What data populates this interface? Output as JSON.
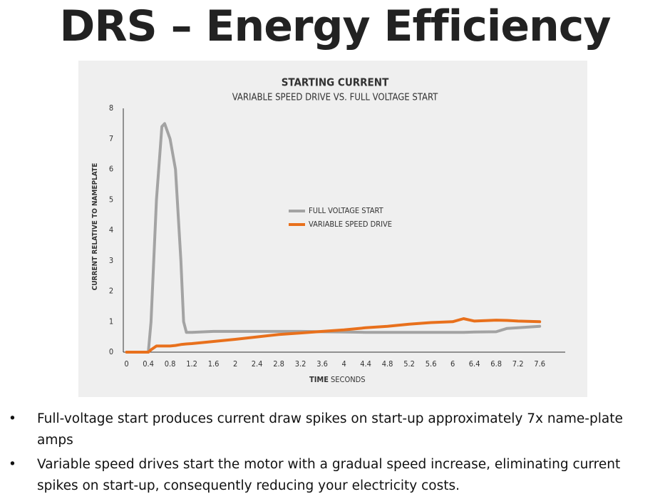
{
  "slide_title": "DRS – Energy Efficiency",
  "bullets": [
    "Full-voltage start produces current draw spikes on start-up approximately 7x  name-plate amps",
    "Variable speed drives start the motor with a gradual speed increase, eliminating current spikes on start-up, consequently reducing your electricity costs."
  ],
  "chart_data": {
    "type": "line",
    "title": "STARTING CURRENT",
    "subtitle": "VARIABLE  SPEED DRIVE VS. FULL VOLTAGE START",
    "x_label": "TIME",
    "x_label_unit": "SECONDS",
    "y_label": "CURRENT RELATIVE TO NAMEPLATE",
    "x": [
      0,
      0.4,
      0.45,
      0.55,
      0.65,
      0.7,
      0.8,
      0.9,
      1.0,
      1.05,
      1.1,
      1.2,
      1.6,
      2,
      2.4,
      2.8,
      3.2,
      3.6,
      4,
      4.4,
      4.8,
      5.2,
      5.6,
      6,
      6.2,
      6.4,
      6.8,
      7,
      7.2,
      7.6
    ],
    "series": [
      {
        "name": "FULL VOLTAGE START",
        "color": "#a3a3a3",
        "values": [
          0,
          0,
          1,
          5,
          7.4,
          7.5,
          7.0,
          6.0,
          3,
          1.0,
          0.65,
          0.65,
          0.68,
          0.68,
          0.68,
          0.68,
          0.68,
          0.67,
          0.66,
          0.65,
          0.65,
          0.65,
          0.65,
          0.65,
          0.65,
          0.66,
          0.67,
          0.78,
          0.8,
          0.85
        ]
      },
      {
        "name": "VARIABLE SPEED DRIVE",
        "color": "#e8701c",
        "values": [
          0,
          0,
          0.08,
          0.2,
          0.2,
          0.2,
          0.2,
          0.22,
          0.25,
          0.26,
          0.27,
          0.28,
          0.35,
          0.42,
          0.5,
          0.58,
          0.63,
          0.68,
          0.73,
          0.8,
          0.85,
          0.92,
          0.97,
          1.0,
          1.1,
          1.02,
          1.05,
          1.04,
          1.02,
          1.0
        ]
      }
    ],
    "xlim": [
      -0.06,
      8.07
    ],
    "ylim": [
      0,
      8
    ],
    "xticks": [
      0,
      0.4,
      0.8,
      1.2,
      1.6,
      2,
      2.4,
      2.8,
      3.2,
      3.6,
      4,
      4.4,
      4.8,
      5.2,
      5.6,
      6,
      6.4,
      6.8,
      7.2,
      7.6
    ],
    "yticks": [
      0,
      1,
      2,
      3,
      4,
      5,
      6,
      7,
      8
    ]
  }
}
